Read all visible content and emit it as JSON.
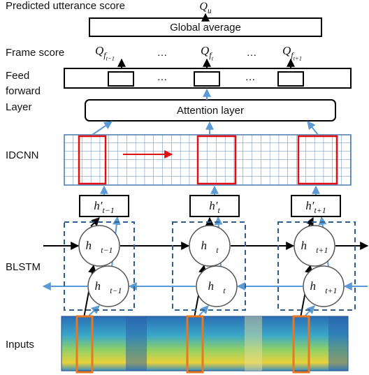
{
  "header": {
    "title": "Predicted utterance score",
    "output": {
      "base": "Q",
      "sub": "u"
    }
  },
  "global_average": "Global average",
  "frame_score": {
    "label": "Frame score",
    "scores": [
      {
        "base": "Q",
        "sub": "f",
        "subsub": "t−1"
      },
      {
        "base": "Q",
        "sub": "f",
        "subsub": "t"
      },
      {
        "base": "Q",
        "sub": "f",
        "subsub": "t+1"
      }
    ],
    "ellipses": [
      "…",
      "…"
    ]
  },
  "feed_forward": {
    "label_lines": [
      "Feed",
      "forward",
      "Layer"
    ],
    "ellipses": [
      "…",
      "…"
    ]
  },
  "attention": "Attention layer",
  "idcnn": {
    "label": "IDCNN"
  },
  "hidden_outputs": [
    {
      "base": "h′",
      "sub": "t−1"
    },
    {
      "base": "h′",
      "sub": "t"
    },
    {
      "base": "h′",
      "sub": "t+1"
    }
  ],
  "blstm": {
    "label": "BLSTM",
    "forward": [
      {
        "base": "h⃗",
        "sub": "t−1"
      },
      {
        "base": "h⃗",
        "sub": "t"
      },
      {
        "base": "h⃗",
        "sub": "t+1"
      }
    ],
    "backward": [
      {
        "base": "h⃗",
        "sub": "t−1"
      },
      {
        "base": "h⃗",
        "sub": "t"
      },
      {
        "base": "h⃗",
        "sub": "t+1"
      }
    ]
  },
  "inputs": {
    "label": "Inputs"
  }
}
